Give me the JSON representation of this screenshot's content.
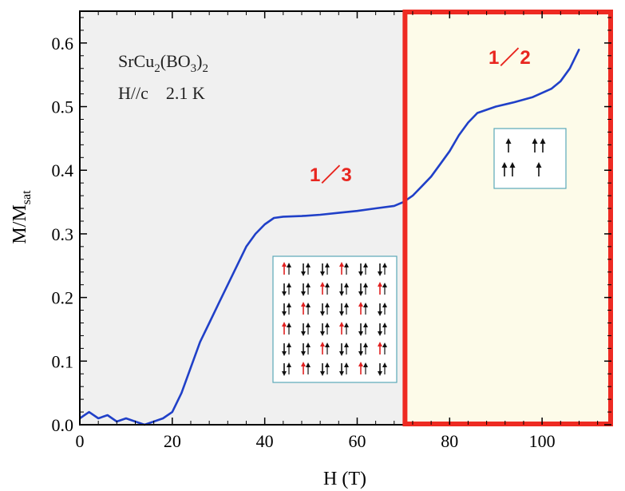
{
  "chart_data": {
    "type": "line",
    "xlabel": "H (T)",
    "ylabel": "M/M",
    "ylabel_sub": "sat",
    "xlim": [
      0,
      115
    ],
    "ylim": [
      0,
      0.65
    ],
    "xticks": [
      0,
      20,
      40,
      60,
      80,
      100
    ],
    "yticks": [
      0.0,
      0.1,
      0.2,
      0.3,
      0.4,
      0.5,
      0.6
    ],
    "xtick_labels": [
      "0",
      "20",
      "40",
      "60",
      "80",
      "100"
    ],
    "ytick_labels": [
      "0.0",
      "0.1",
      "0.2",
      "0.3",
      "0.4",
      "0.5",
      "0.6"
    ],
    "grid": false,
    "colors": {
      "line": "#2040c8",
      "region_left": "#f0f0f0",
      "region_right": "#fdfbe9",
      "highlight_box": "#ee2a22",
      "plateau_label": "#e8261f",
      "inset_border": "#5aa8b8"
    },
    "regions": [
      {
        "x_from": 0,
        "x_to": 70,
        "color": "#f0f0f0"
      },
      {
        "x_from": 70,
        "x_to": 115,
        "color": "#fdfbe9",
        "outlined": true
      }
    ],
    "annotations": {
      "sample_line1": "SrCu",
      "sample_sub1": "2",
      "sample_mid": "(BO",
      "sample_sub2": "3",
      "sample_end": ")",
      "sample_sub3": "2",
      "conditions": "H//c    2.1 K",
      "plateau_third": "1／3",
      "plateau_half": "1／2"
    },
    "series": [
      {
        "x": [
          0,
          2,
          4,
          6,
          8,
          10,
          12,
          14,
          16,
          18,
          20,
          22,
          24,
          26,
          28,
          30,
          32,
          34,
          36,
          38,
          40,
          42,
          44,
          48,
          52,
          56,
          60,
          64,
          68,
          70,
          72,
          74,
          76,
          78,
          80,
          82,
          84,
          86,
          88,
          90,
          94,
          98,
          102,
          104,
          106,
          108
        ],
        "y": [
          0.01,
          0.02,
          0.01,
          0.015,
          0.005,
          0.01,
          0.005,
          0.0,
          0.005,
          0.01,
          0.02,
          0.05,
          0.09,
          0.13,
          0.16,
          0.19,
          0.22,
          0.25,
          0.28,
          0.3,
          0.315,
          0.325,
          0.327,
          0.328,
          0.33,
          0.333,
          0.336,
          0.34,
          0.344,
          0.35,
          0.36,
          0.375,
          0.39,
          0.41,
          0.43,
          0.455,
          0.475,
          0.49,
          0.495,
          0.5,
          0.507,
          0.515,
          0.528,
          0.54,
          0.56,
          0.59
        ]
      }
    ]
  }
}
